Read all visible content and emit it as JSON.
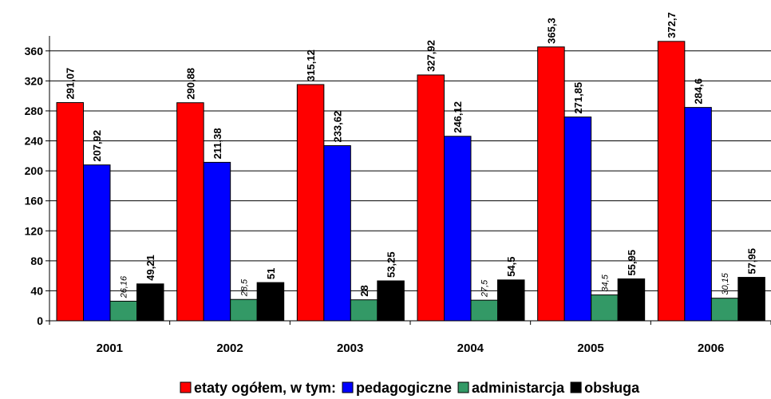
{
  "chart_data": {
    "type": "bar",
    "categories": [
      "2001",
      "2002",
      "2003",
      "2004",
      "2005",
      "2006"
    ],
    "series": [
      {
        "name": "etaty ogółem, w tym:",
        "color": "#ff0000",
        "values": [
          291.07,
          290.88,
          315.12,
          327.92,
          365.3,
          372.7
        ],
        "value_labels": [
          "291,07",
          "290,88",
          "315,12",
          "327,92",
          "365,3",
          "372,7"
        ]
      },
      {
        "name": "pedagogiczne",
        "color": "#0000ff",
        "values": [
          207.92,
          211.38,
          233.62,
          246.12,
          271.85,
          284.6
        ],
        "value_labels": [
          "207,92",
          "211,38",
          "233,62",
          "246,12",
          "271,85",
          "284,6"
        ]
      },
      {
        "name": "administarcja",
        "color": "#339966",
        "values": [
          26.16,
          28.5,
          28,
          27.5,
          34.5,
          30.15
        ],
        "value_labels": [
          "26,16",
          "28,5",
          "28",
          "27,5",
          "34,5",
          "30,15"
        ]
      },
      {
        "name": "obsługa",
        "color": "#000000",
        "values": [
          49.21,
          51,
          53.25,
          54.5,
          55.95,
          57.95
        ],
        "value_labels": [
          "49,21",
          "51",
          "53,25",
          "54,5",
          "55,95",
          "57,95"
        ]
      }
    ],
    "ylim": [
      0,
      380
    ],
    "yticks": [
      0,
      40,
      80,
      120,
      160,
      200,
      240,
      280,
      320,
      360
    ],
    "grid": true,
    "legend": "bottom"
  }
}
